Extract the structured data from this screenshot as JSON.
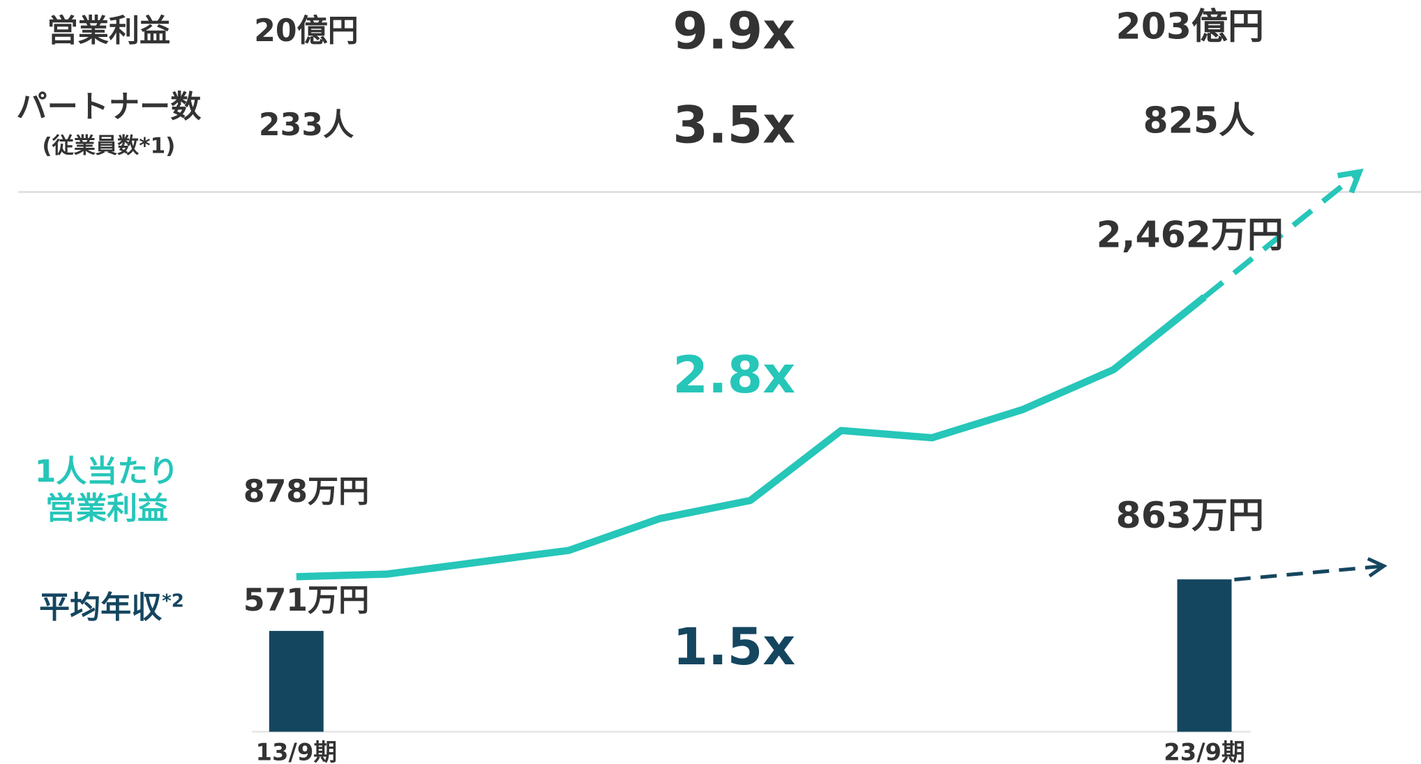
{
  "table": {
    "rows": [
      {
        "label": "営業利益",
        "start": "20億円",
        "multiple": "9.9x",
        "end": "203億円"
      },
      {
        "label": "パートナー数",
        "sublabel": "(従業員数*1)",
        "start": "233人",
        "multiple": "3.5x",
        "end": "825人"
      }
    ]
  },
  "chart_data": {
    "type": "line-bar",
    "categories": [
      "13/9期",
      null,
      null,
      null,
      null,
      null,
      null,
      null,
      null,
      null,
      "23/9期"
    ],
    "series": [
      {
        "name": "1人当たり営業利益",
        "type": "line",
        "color": "#26c6b9",
        "values": [
          878,
          893,
          960,
          1027,
          1207,
          1310,
          1706,
          1665,
          1825,
          2051,
          2462
        ],
        "value_labels": [
          "878万円",
          null,
          null,
          null,
          null,
          null,
          null,
          null,
          null,
          null,
          "2,462万円"
        ],
        "multiple": "2.8x"
      },
      {
        "name": "平均年収",
        "name_note": "*2",
        "type": "bar",
        "color": "#154660",
        "values": [
          571,
          null,
          null,
          null,
          null,
          null,
          null,
          null,
          null,
          null,
          863
        ],
        "value_labels": [
          "571万円",
          null,
          null,
          null,
          null,
          null,
          null,
          null,
          null,
          null,
          "863万円"
        ],
        "multiple": "1.5x"
      }
    ]
  }
}
